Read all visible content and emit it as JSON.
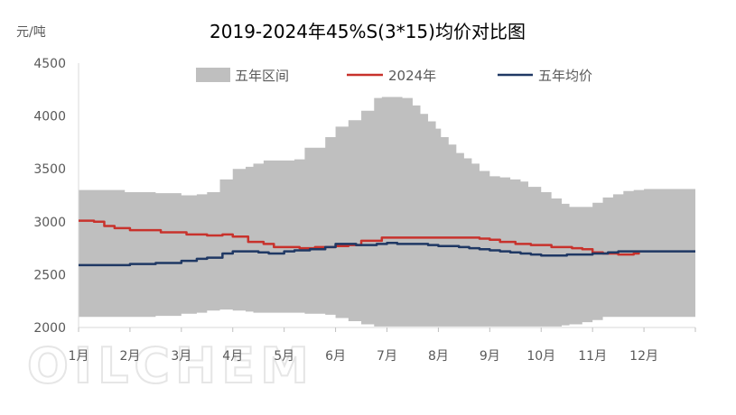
{
  "chart_data": {
    "type": "line",
    "title": "2019-2024年45%S(3*15)均价对比图",
    "unit": "元/吨",
    "watermark": "OILCHEM",
    "categories": [
      "1月",
      "2月",
      "3月",
      "4月",
      "5月",
      "6月",
      "7月",
      "8月",
      "9月",
      "10月",
      "11月",
      "12月"
    ],
    "ylim": [
      2000,
      4500
    ],
    "yticks": [
      2000,
      2500,
      3000,
      3500,
      4000,
      4500
    ],
    "grid": false,
    "legend_position": "top",
    "range_band": {
      "name": "五年区间",
      "color": "#bfbfbf",
      "x": [
        0,
        0.9,
        1.0,
        1.5,
        2.0,
        2.3,
        2.5,
        2.75,
        3.0,
        3.25,
        3.4,
        3.6,
        3.8,
        4.2,
        4.4,
        4.8,
        5.0,
        5.25,
        5.5,
        5.75,
        5.9,
        6.1,
        6.3,
        6.5,
        6.65,
        6.8,
        6.95,
        7.05,
        7.2,
        7.35,
        7.5,
        7.65,
        7.8,
        8.0,
        8.2,
        8.4,
        8.6,
        8.75,
        9.0,
        9.2,
        9.4,
        9.55,
        9.8,
        10.0,
        10.2,
        10.4,
        10.6,
        10.8,
        11.0,
        11.25,
        11.5,
        12.0
      ],
      "upper": [
        3300,
        3280,
        3280,
        3270,
        3250,
        3260,
        3280,
        3400,
        3500,
        3520,
        3550,
        3580,
        3580,
        3590,
        3700,
        3800,
        3900,
        3960,
        4050,
        4170,
        4180,
        4180,
        4170,
        4100,
        4020,
        3950,
        3880,
        3800,
        3730,
        3650,
        3600,
        3550,
        3480,
        3430,
        3420,
        3400,
        3380,
        3330,
        3280,
        3220,
        3170,
        3140,
        3140,
        3180,
        3230,
        3260,
        3290,
        3300,
        3310,
        3310,
        3310,
        3310
      ],
      "lower": [
        2100,
        2100,
        2100,
        2110,
        2130,
        2140,
        2160,
        2170,
        2160,
        2150,
        2140,
        2140,
        2140,
        2140,
        2130,
        2120,
        2090,
        2060,
        2030,
        2010,
        2010,
        2010,
        2010,
        2010,
        2010,
        2010,
        2010,
        2010,
        2010,
        2010,
        2010,
        2010,
        2010,
        2010,
        2010,
        2010,
        2010,
        2010,
        2010,
        2010,
        2020,
        2030,
        2050,
        2070,
        2100,
        2100,
        2100,
        2100,
        2100,
        2100,
        2100,
        2100
      ]
    },
    "series": [
      {
        "name": "2024年",
        "color": "#c8322c",
        "x": [
          0,
          0.3,
          0.5,
          0.7,
          1.0,
          1.6,
          2.1,
          2.5,
          2.8,
          3.0,
          3.3,
          3.6,
          3.8,
          4.3,
          4.6,
          5.0,
          5.25,
          5.5,
          5.9,
          6.1,
          6.5,
          7.0,
          7.5,
          7.8,
          8.0,
          8.2,
          8.5,
          8.8,
          9.2,
          9.6,
          9.8,
          10.0,
          10.2,
          10.5,
          10.6,
          10.8,
          10.9
        ],
        "values": [
          3010,
          3000,
          2960,
          2940,
          2920,
          2900,
          2880,
          2870,
          2880,
          2860,
          2810,
          2790,
          2760,
          2750,
          2760,
          2770,
          2780,
          2820,
          2850,
          2850,
          2850,
          2850,
          2850,
          2840,
          2830,
          2810,
          2790,
          2780,
          2760,
          2750,
          2740,
          2710,
          2700,
          2690,
          2690,
          2700,
          2710
        ]
      },
      {
        "name": "五年均价",
        "color": "#1f3864",
        "x": [
          0,
          0.5,
          1.0,
          1.5,
          2.0,
          2.3,
          2.5,
          2.8,
          3.0,
          3.3,
          3.5,
          3.7,
          3.8,
          4.0,
          4.2,
          4.5,
          4.8,
          5.0,
          5.2,
          5.4,
          5.6,
          5.8,
          6.0,
          6.2,
          6.5,
          6.8,
          7.0,
          7.2,
          7.4,
          7.6,
          7.8,
          8.0,
          8.2,
          8.4,
          8.6,
          8.8,
          9.0,
          9.3,
          9.5,
          9.8,
          10.0,
          10.3,
          10.5,
          10.8,
          11.0,
          11.5,
          12.0
        ],
        "values": [
          2590,
          2590,
          2600,
          2610,
          2630,
          2650,
          2660,
          2700,
          2720,
          2720,
          2710,
          2700,
          2700,
          2720,
          2730,
          2740,
          2760,
          2790,
          2790,
          2780,
          2780,
          2790,
          2800,
          2790,
          2790,
          2780,
          2770,
          2770,
          2760,
          2750,
          2740,
          2730,
          2720,
          2710,
          2700,
          2690,
          2680,
          2680,
          2690,
          2690,
          2700,
          2710,
          2720,
          2720,
          2720,
          2720,
          2720
        ]
      }
    ]
  }
}
